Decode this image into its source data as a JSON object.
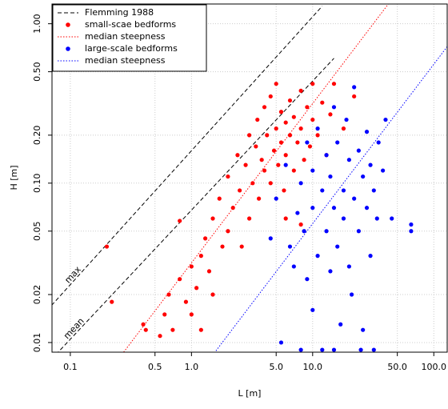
{
  "chart_data": {
    "type": "scatter",
    "xscale": "log",
    "yscale": "log",
    "x_label": "L [m]",
    "y_label": "H [m]",
    "xlim": [
      0.0706,
      129
    ],
    "ylim": [
      0.0087,
      1.33
    ],
    "xticks": [
      0.1,
      0.5,
      {
        "value": 1,
        "label": "1.0"
      },
      {
        "value": 5,
        "label": "5.0"
      },
      {
        "value": 10,
        "label": "10.0"
      },
      {
        "value": 50,
        "label": "50.0"
      },
      {
        "value": 100,
        "label": "100.0"
      }
    ],
    "yticks": [
      0.01,
      0.02,
      0.05,
      {
        "value": 0.1,
        "label": "0.10"
      },
      {
        "value": 0.2,
        "label": "0.20"
      },
      {
        "value": 0.5,
        "label": "0.50"
      },
      {
        "value": 1,
        "label": "1.00"
      }
    ],
    "grid": true,
    "legend": "top-left",
    "series": [
      {
        "name": "Flemming 1988",
        "color": "#000000",
        "style": "dashed",
        "lines": [
          {
            "label": "max",
            "x": [
              0.07,
              12
            ],
            "values": [
              0.0171,
              1.29
            ]
          },
          {
            "label": "mean",
            "x": [
              0.07,
              15
            ],
            "values": [
              0.00786,
              0.607
            ]
          }
        ]
      },
      {
        "name": "small-scae bedforms",
        "color": "#ff0000",
        "style": "points",
        "x": [
          0.2,
          0.22,
          0.4,
          0.42,
          0.55,
          0.6,
          0.65,
          0.7,
          0.8,
          0.8,
          0.9,
          1.0,
          1.0,
          1.1,
          1.2,
          1.2,
          1.3,
          1.4,
          1.5,
          1.5,
          1.7,
          1.8,
          2.0,
          2.0,
          2.2,
          2.4,
          2.5,
          2.6,
          2.8,
          3.0,
          3.0,
          3.2,
          3.4,
          3.5,
          3.6,
          3.8,
          4.0,
          4.0,
          4.2,
          4.5,
          4.5,
          4.8,
          5.0,
          5.0,
          5.2,
          5.5,
          5.5,
          5.8,
          6.0,
          6.0,
          6.5,
          6.5,
          7.0,
          7.0,
          7.5,
          8.0,
          8.0,
          8.5,
          9.0,
          9.5,
          10,
          10,
          11,
          12,
          13,
          14,
          15,
          18,
          22,
          8.0,
          6.0
        ],
        "values": [
          0.04,
          0.018,
          0.013,
          0.012,
          0.011,
          0.015,
          0.02,
          0.012,
          0.025,
          0.058,
          0.018,
          0.03,
          0.015,
          0.022,
          0.035,
          0.012,
          0.045,
          0.028,
          0.06,
          0.02,
          0.08,
          0.04,
          0.11,
          0.05,
          0.07,
          0.15,
          0.09,
          0.04,
          0.13,
          0.2,
          0.06,
          0.1,
          0.17,
          0.25,
          0.08,
          0.14,
          0.3,
          0.12,
          0.2,
          0.35,
          0.1,
          0.16,
          0.22,
          0.42,
          0.13,
          0.28,
          0.18,
          0.09,
          0.24,
          0.15,
          0.33,
          0.2,
          0.12,
          0.26,
          0.18,
          0.22,
          0.38,
          0.14,
          0.3,
          0.17,
          0.25,
          0.42,
          0.2,
          0.32,
          0.15,
          0.27,
          0.42,
          0.22,
          0.35,
          0.055,
          0.06
        ]
      },
      {
        "name": "median steepness",
        "color": "#ff0000",
        "style": "dotted",
        "x": [
          0.25,
          45
        ],
        "values": [
          0.0079,
          1.42
        ]
      },
      {
        "name": "large-scale bedforms",
        "color": "#0000ff",
        "style": "points",
        "x": [
          4.5,
          5.0,
          5.5,
          6.0,
          6.5,
          7.0,
          7.5,
          8.0,
          8.0,
          8.5,
          9.0,
          9.0,
          10,
          10,
          10,
          11,
          11,
          12,
          12,
          13,
          13,
          14,
          14,
          15,
          15,
          16,
          16,
          17,
          18,
          18,
          19,
          20,
          20,
          21,
          22,
          22,
          24,
          24,
          26,
          26,
          28,
          28,
          30,
          30,
          32,
          34,
          35,
          38,
          40,
          45,
          65,
          65,
          15,
          25,
          32
        ],
        "values": [
          0.045,
          0.08,
          0.01,
          0.13,
          0.04,
          0.03,
          0.065,
          0.009,
          0.1,
          0.05,
          0.18,
          0.025,
          0.07,
          0.12,
          0.016,
          0.035,
          0.22,
          0.09,
          0.009,
          0.05,
          0.15,
          0.028,
          0.11,
          0.07,
          0.3,
          0.04,
          0.18,
          0.013,
          0.09,
          0.06,
          0.25,
          0.03,
          0.14,
          0.02,
          0.08,
          0.4,
          0.05,
          0.16,
          0.11,
          0.012,
          0.07,
          0.21,
          0.035,
          0.13,
          0.09,
          0.06,
          0.18,
          0.12,
          0.25,
          0.06,
          0.055,
          0.05,
          0.009,
          0.009,
          0.009
        ]
      },
      {
        "name": "median steepness",
        "color": "#0000ff",
        "style": "dotted",
        "x": [
          1.4,
          140
        ],
        "values": [
          0.0078,
          0.78
        ]
      }
    ]
  }
}
